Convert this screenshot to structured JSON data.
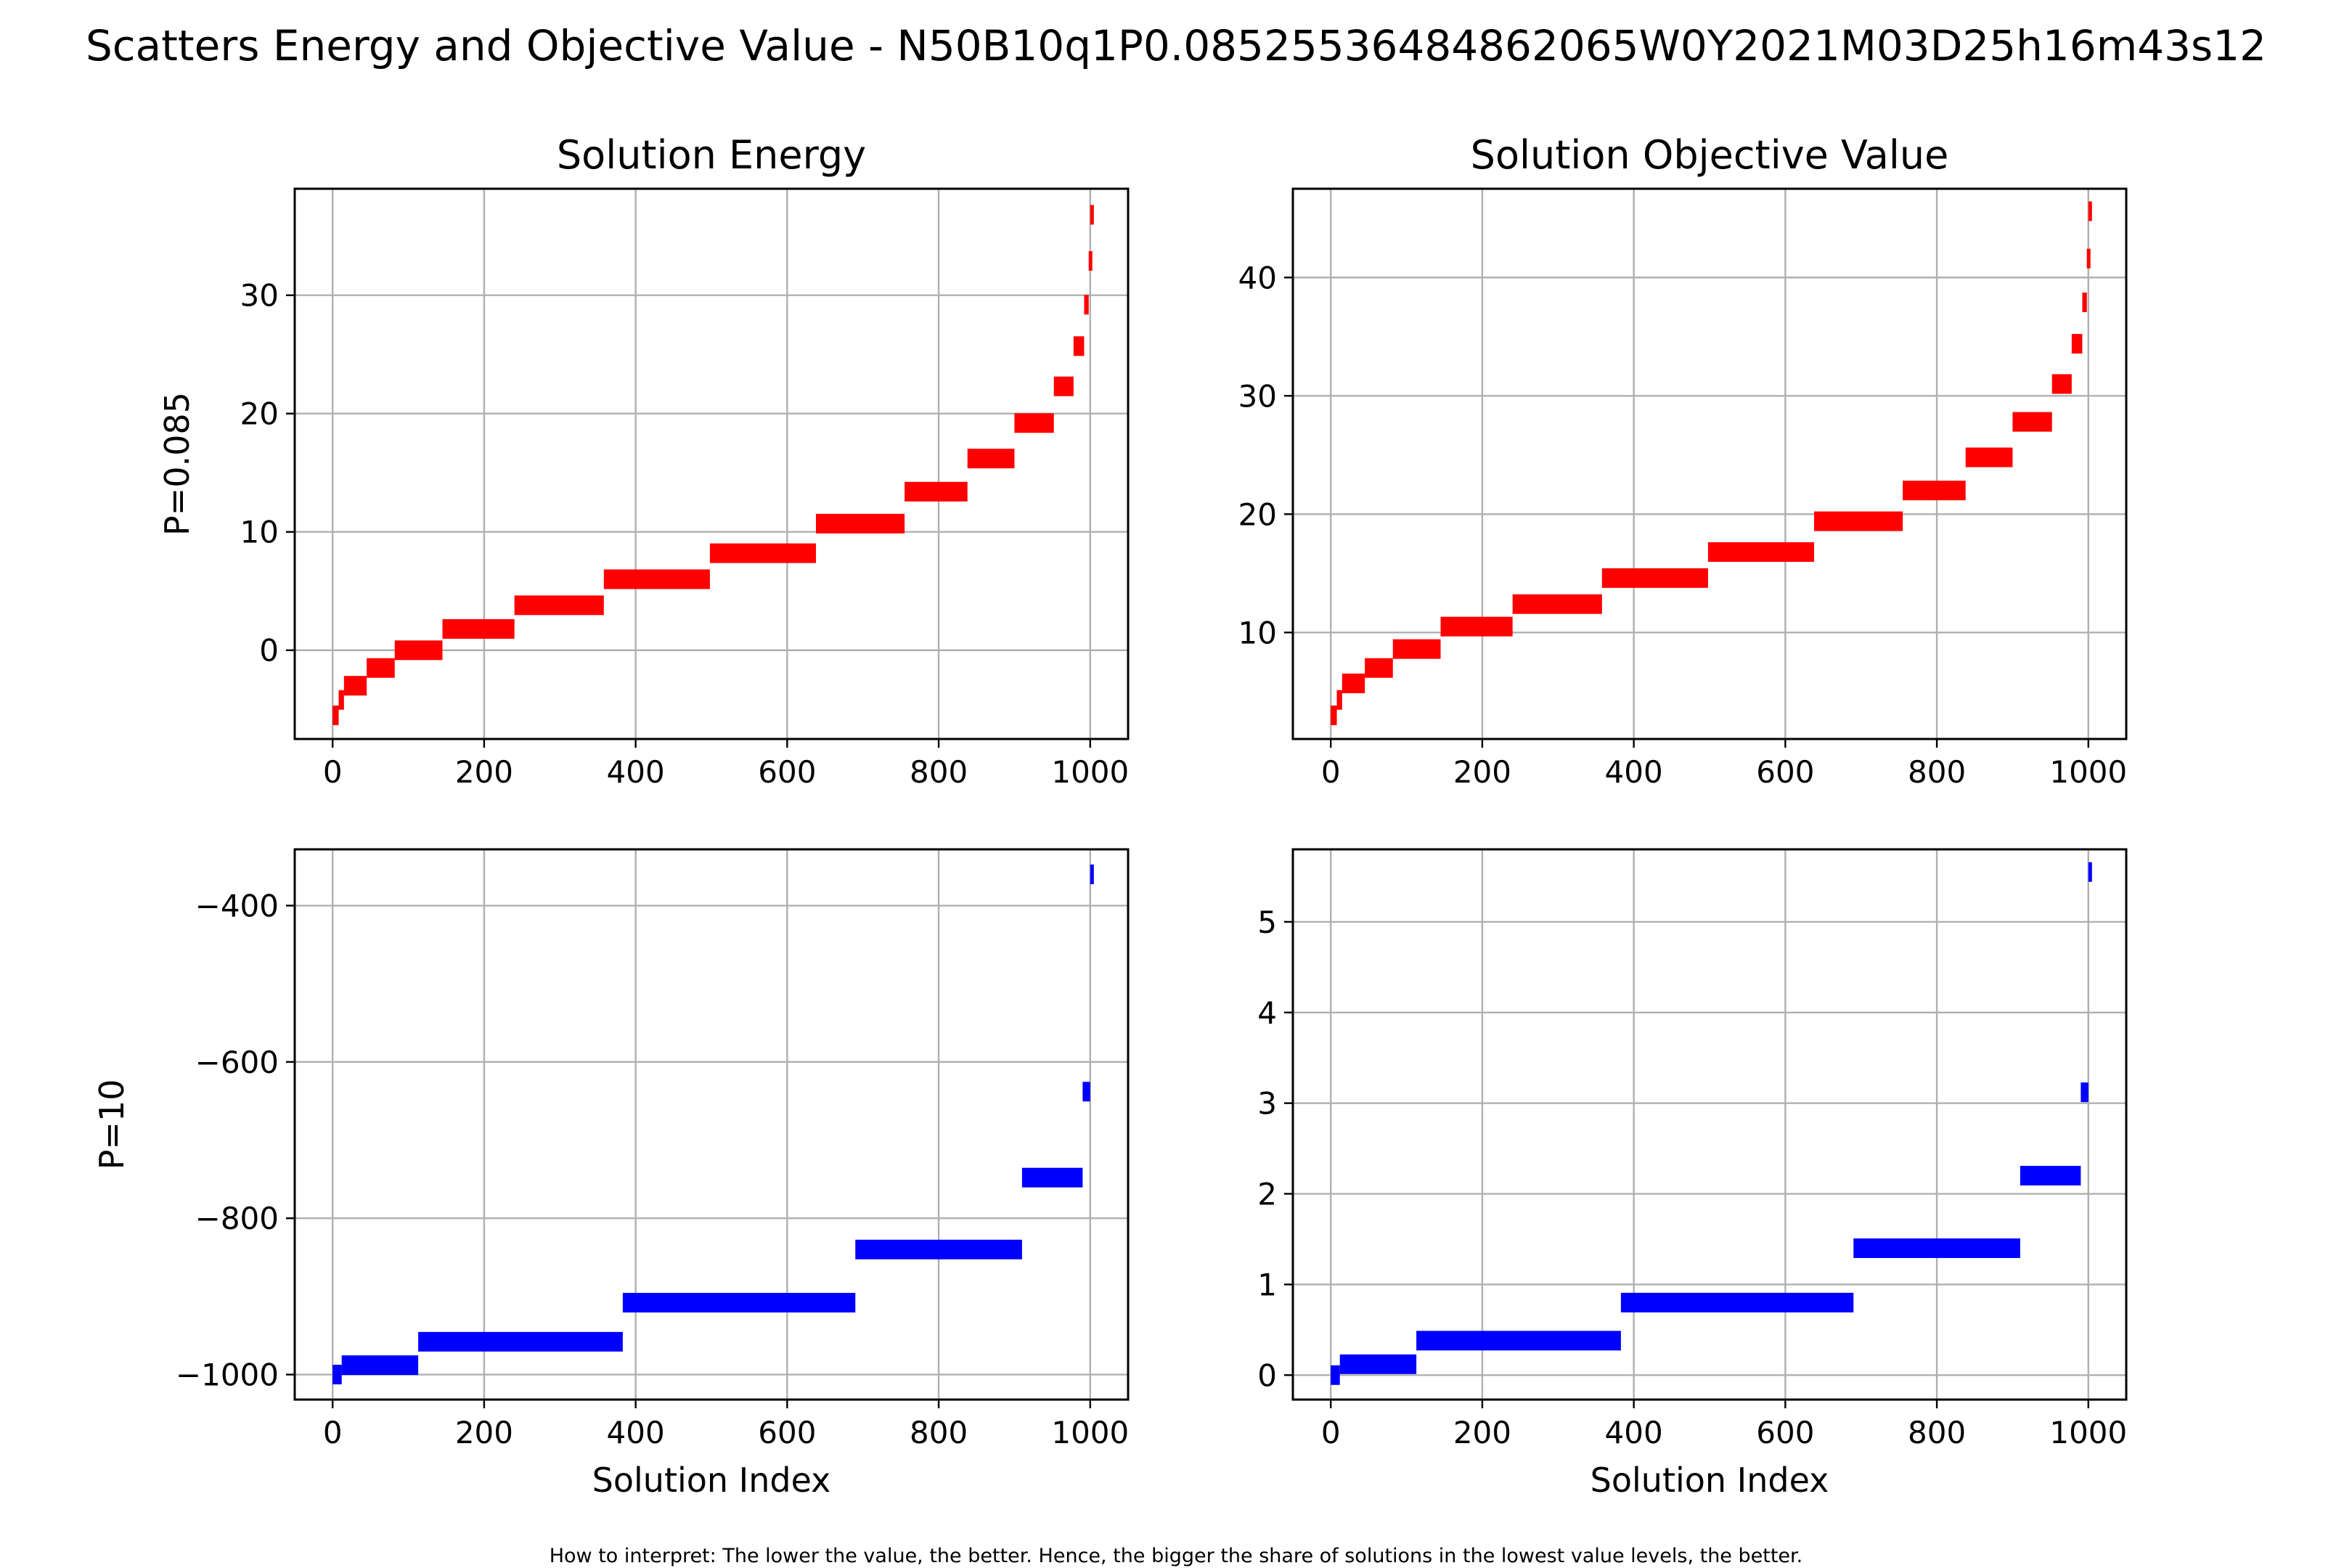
{
  "figure": {
    "suptitle": "Scatters Energy and Objective Value - N50B10q1P0.0852553648486206​5W0Y2021M03D25h16m43s12",
    "footnote": "How to interpret: The lower the value, the better. Hence, the bigger the share of solutions in the lowest value levels, the better."
  },
  "chart_data": [
    {
      "type": "scatter",
      "title": "Solution Energy",
      "xlabel": "",
      "ylabel": "P=0.085",
      "xlim": [
        -50,
        1050
      ],
      "ylim": [
        -7.5,
        39
      ],
      "xticks": [
        0,
        200,
        400,
        600,
        800,
        1000
      ],
      "yticks": [
        0,
        10,
        20,
        30
      ],
      "grid": true,
      "color": "#ff0000",
      "series": [
        {
          "levels": [
            {
              "x": [
                0,
                8
              ],
              "y": -5.5
            },
            {
              "x": [
                8,
                15
              ],
              "y": -4.2
            },
            {
              "x": [
                15,
                45
              ],
              "y": -3.0
            },
            {
              "x": [
                45,
                82
              ],
              "y": -1.5
            },
            {
              "x": [
                82,
                145
              ],
              "y": 0.0
            },
            {
              "x": [
                145,
                240
              ],
              "y": 1.8
            },
            {
              "x": [
                240,
                358
              ],
              "y": 3.8
            },
            {
              "x": [
                358,
                498
              ],
              "y": 6.0
            },
            {
              "x": [
                498,
                638
              ],
              "y": 8.2
            },
            {
              "x": [
                638,
                755
              ],
              "y": 10.7
            },
            {
              "x": [
                755,
                838
              ],
              "y": 13.4
            },
            {
              "x": [
                838,
                900
              ],
              "y": 16.2
            },
            {
              "x": [
                900,
                952
              ],
              "y": 19.2
            },
            {
              "x": [
                952,
                978
              ],
              "y": 22.3
            },
            {
              "x": [
                978,
                992
              ],
              "y": 25.7
            },
            {
              "x": [
                992,
                998
              ],
              "y": 29.2
            },
            {
              "x": [
                998,
                1000
              ],
              "y": 32.9
            },
            {
              "x": [
                1000,
                1001
              ],
              "y": 36.8
            }
          ]
        }
      ]
    },
    {
      "type": "scatter",
      "title": "Solution Objective Value",
      "xlabel": "",
      "ylabel": "",
      "xlim": [
        -50,
        1050
      ],
      "ylim": [
        1,
        47.5
      ],
      "xticks": [
        0,
        200,
        400,
        600,
        800,
        1000
      ],
      "yticks": [
        10,
        20,
        30,
        40
      ],
      "grid": true,
      "color": "#ff0000",
      "series": [
        {
          "levels": [
            {
              "x": [
                0,
                8
              ],
              "y": 3.0
            },
            {
              "x": [
                8,
                15
              ],
              "y": 4.3
            },
            {
              "x": [
                15,
                45
              ],
              "y": 5.7
            },
            {
              "x": [
                45,
                82
              ],
              "y": 7.0
            },
            {
              "x": [
                82,
                145
              ],
              "y": 8.6
            },
            {
              "x": [
                145,
                240
              ],
              "y": 10.5
            },
            {
              "x": [
                240,
                358
              ],
              "y": 12.4
            },
            {
              "x": [
                358,
                498
              ],
              "y": 14.6
            },
            {
              "x": [
                498,
                638
              ],
              "y": 16.8
            },
            {
              "x": [
                638,
                755
              ],
              "y": 19.4
            },
            {
              "x": [
                755,
                838
              ],
              "y": 22.0
            },
            {
              "x": [
                838,
                900
              ],
              "y": 24.8
            },
            {
              "x": [
                900,
                952
              ],
              "y": 27.8
            },
            {
              "x": [
                952,
                978
              ],
              "y": 31.0
            },
            {
              "x": [
                978,
                992
              ],
              "y": 34.4
            },
            {
              "x": [
                992,
                998
              ],
              "y": 37.9
            },
            {
              "x": [
                998,
                1000
              ],
              "y": 41.6
            },
            {
              "x": [
                1000,
                1001
              ],
              "y": 45.6
            }
          ]
        }
      ]
    },
    {
      "type": "scatter",
      "title": "",
      "xlabel": "Solution Index",
      "ylabel": "P=10",
      "xlim": [
        -50,
        1050
      ],
      "ylim": [
        -1032,
        -328
      ],
      "xticks": [
        0,
        200,
        400,
        600,
        800,
        1000
      ],
      "yticks": [
        -400,
        -600,
        -800,
        -1000
      ],
      "grid": true,
      "color": "#0000ff",
      "series": [
        {
          "levels": [
            {
              "x": [
                0,
                12
              ],
              "y": -1000
            },
            {
              "x": [
                12,
                113
              ],
              "y": -988
            },
            {
              "x": [
                113,
                383
              ],
              "y": -958
            },
            {
              "x": [
                383,
                690
              ],
              "y": -908
            },
            {
              "x": [
                690,
                910
              ],
              "y": -840
            },
            {
              "x": [
                910,
                990
              ],
              "y": -748
            },
            {
              "x": [
                990,
                1000
              ],
              "y": -638
            },
            {
              "x": [
                1000,
                1001
              ],
              "y": -360
            }
          ]
        }
      ]
    },
    {
      "type": "scatter",
      "title": "",
      "xlabel": "Solution Index",
      "ylabel": "",
      "xlim": [
        -50,
        1050
      ],
      "ylim": [
        -0.27,
        5.8
      ],
      "xticks": [
        0,
        200,
        400,
        600,
        800,
        1000
      ],
      "yticks": [
        0,
        1,
        2,
        3,
        4,
        5
      ],
      "grid": true,
      "color": "#0000ff",
      "series": [
        {
          "levels": [
            {
              "x": [
                0,
                12
              ],
              "y": 0.0
            },
            {
              "x": [
                12,
                113
              ],
              "y": 0.12
            },
            {
              "x": [
                113,
                383
              ],
              "y": 0.38
            },
            {
              "x": [
                383,
                690
              ],
              "y": 0.8
            },
            {
              "x": [
                690,
                910
              ],
              "y": 1.4
            },
            {
              "x": [
                910,
                990
              ],
              "y": 2.2
            },
            {
              "x": [
                990,
                1000
              ],
              "y": 3.12
            },
            {
              "x": [
                1000,
                1001
              ],
              "y": 5.55
            }
          ]
        }
      ]
    }
  ]
}
